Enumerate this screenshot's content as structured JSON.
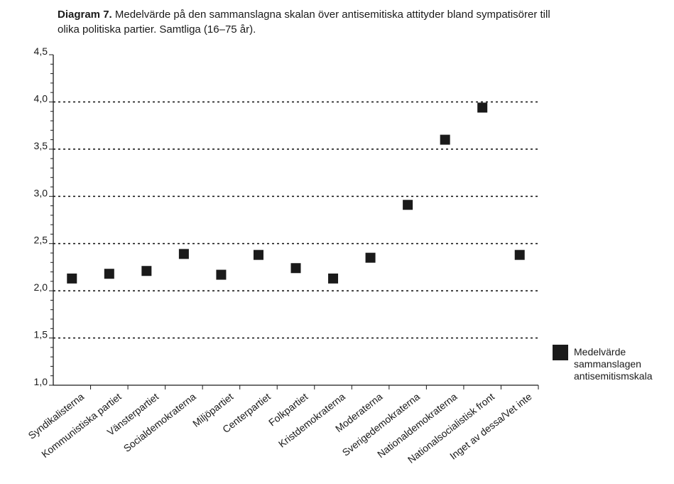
{
  "caption": {
    "label": "Diagram 7.",
    "text": "Medelvärde på den sammanslagna skalan över antisemitiska attityder bland sympatisörer till olika politiska partier. Samtliga (16–75 år)."
  },
  "chart_data": {
    "type": "scatter",
    "title": "Diagram 7. Medelvärde på den sammanslagna skalan över antisemitiska attityder bland sympatisörer till olika politiska partier. Samtliga (16–75 år).",
    "xlabel": "",
    "ylabel": "",
    "ylim": [
      1.0,
      4.5
    ],
    "yticks": [
      "1,0",
      "1,5",
      "2,0",
      "2,5",
      "3,0",
      "3,5",
      "4,0",
      "4,5"
    ],
    "ytick_values": [
      1.0,
      1.5,
      2.0,
      2.5,
      3.0,
      3.5,
      4.0,
      4.5
    ],
    "grid": "dotted horizontal at 1,5 2,0 2,5 3,0 3,5 4,0",
    "legend_position": "right",
    "categories": [
      "Syndikalisterna",
      "Kommunistiska partiet",
      "Vänsterpartiet",
      "Socialdemokraterna",
      "Miljöpartiet",
      "Centerpartiet",
      "Folkpartiet",
      "Kristdemokraterna",
      "Moderaterna",
      "Sverigedemokraterna",
      "Nationaldemokraterna",
      "Nationalsocialistisk front",
      "Inget av dessa/Vet inte"
    ],
    "series": [
      {
        "name": "Medelvärde sammanslagen antisemitismskala",
        "legend_lines": [
          "Medelvärde",
          "sammanslagen",
          "antisemitismskala"
        ],
        "color": "#1a1a1a",
        "marker": "square",
        "values": [
          2.13,
          2.18,
          2.21,
          2.39,
          2.17,
          2.38,
          2.24,
          2.13,
          2.35,
          2.91,
          3.6,
          3.94,
          2.38
        ]
      }
    ]
  }
}
